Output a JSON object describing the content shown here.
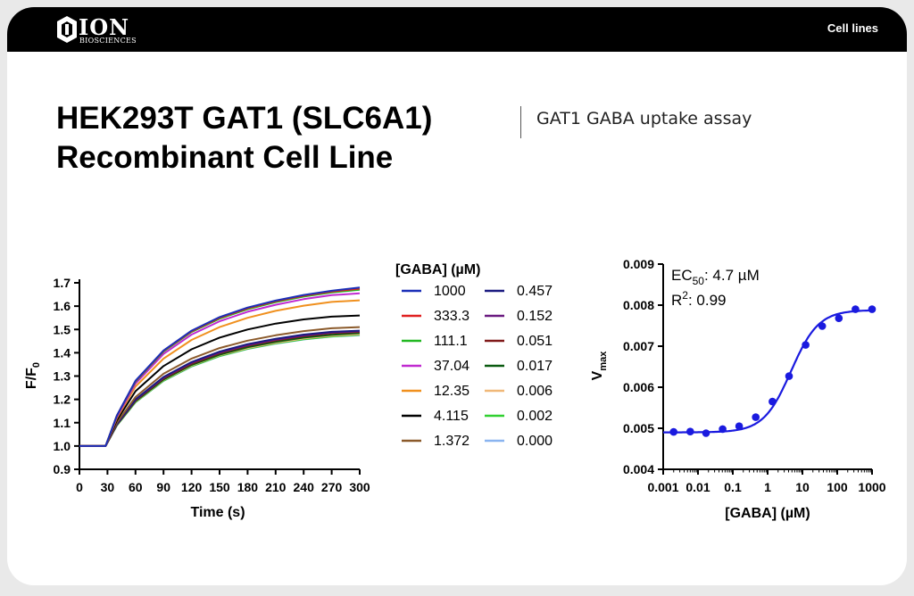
{
  "header": {
    "logo_text": "ION",
    "logo_subtext": "BIOSCIENCES",
    "section": "Cell lines"
  },
  "title": {
    "line1": "HEK293T GAT1 (SLC6A1)",
    "line2": "Recombinant Cell Line",
    "subtitle": "GAT1 GABA uptake assay"
  },
  "chart_data": [
    {
      "type": "line",
      "xlabel": "Time (s)",
      "ylabel": "F/F0",
      "ylabel_main": "F/F",
      "ylabel_sub": "0",
      "xlim": [
        0,
        300
      ],
      "ylim": [
        0.9,
        1.7
      ],
      "x_ticks": [
        "0",
        "30",
        "60",
        "90",
        "120",
        "150",
        "180",
        "210",
        "240",
        "270",
        "300"
      ],
      "y_ticks": [
        "0.9",
        "1.0",
        "1.1",
        "1.2",
        "1.3",
        "1.4",
        "1.5",
        "1.6",
        "1.7"
      ],
      "grid": false,
      "legend_title": "[GABA] (µM)",
      "legend_placement": "right",
      "x": [
        0,
        28,
        40,
        60,
        90,
        120,
        150,
        180,
        210,
        240,
        270,
        300
      ],
      "series": [
        {
          "name": "1000",
          "color": "#1a2fb8",
          "values": [
            1.0,
            1.0,
            1.13,
            1.28,
            1.41,
            1.495,
            1.553,
            1.594,
            1.624,
            1.648,
            1.666,
            1.68
          ]
        },
        {
          "name": "333.3",
          "color": "#e02020",
          "values": [
            1.0,
            1.0,
            1.13,
            1.278,
            1.408,
            1.492,
            1.55,
            1.591,
            1.621,
            1.645,
            1.663,
            1.675
          ]
        },
        {
          "name": "111.1",
          "color": "#22b822",
          "values": [
            1.0,
            1.0,
            1.13,
            1.276,
            1.405,
            1.489,
            1.546,
            1.587,
            1.617,
            1.641,
            1.659,
            1.67
          ]
        },
        {
          "name": "37.04",
          "color": "#c02ad0",
          "values": [
            1.0,
            1.0,
            1.125,
            1.268,
            1.395,
            1.478,
            1.535,
            1.576,
            1.606,
            1.63,
            1.647,
            1.655
          ]
        },
        {
          "name": "12.35",
          "color": "#f0901e",
          "values": [
            1.0,
            1.0,
            1.12,
            1.255,
            1.375,
            1.455,
            1.51,
            1.55,
            1.58,
            1.602,
            1.618,
            1.625
          ]
        },
        {
          "name": "4.115",
          "color": "#000000",
          "values": [
            1.0,
            1.0,
            1.11,
            1.235,
            1.343,
            1.415,
            1.465,
            1.5,
            1.525,
            1.543,
            1.555,
            1.56
          ]
        },
        {
          "name": "1.372",
          "color": "#8b5a2b",
          "values": [
            1.0,
            1.0,
            1.1,
            1.21,
            1.31,
            1.375,
            1.42,
            1.452,
            1.475,
            1.493,
            1.505,
            1.51
          ]
        },
        {
          "name": "0.457",
          "color": "#1a1a80",
          "values": [
            1.0,
            1.0,
            1.095,
            1.2,
            1.296,
            1.36,
            1.405,
            1.437,
            1.46,
            1.478,
            1.49,
            1.495
          ]
        },
        {
          "name": "0.152",
          "color": "#6a1a80",
          "values": [
            1.0,
            1.0,
            1.093,
            1.198,
            1.293,
            1.357,
            1.401,
            1.433,
            1.456,
            1.474,
            1.487,
            1.492
          ]
        },
        {
          "name": "0.051",
          "color": "#801a1a",
          "values": [
            1.0,
            1.0,
            1.092,
            1.196,
            1.29,
            1.353,
            1.398,
            1.43,
            1.453,
            1.471,
            1.484,
            1.49
          ]
        },
        {
          "name": "0.017",
          "color": "#0a5a10",
          "values": [
            1.0,
            1.0,
            1.09,
            1.192,
            1.285,
            1.348,
            1.392,
            1.424,
            1.447,
            1.465,
            1.477,
            1.485
          ]
        },
        {
          "name": "0.006",
          "color": "#f0b878",
          "values": [
            1.0,
            1.0,
            1.09,
            1.19,
            1.283,
            1.345,
            1.389,
            1.42,
            1.443,
            1.461,
            1.473,
            1.48
          ]
        },
        {
          "name": "0.002",
          "color": "#30d030",
          "values": [
            1.0,
            1.0,
            1.088,
            1.188,
            1.28,
            1.342,
            1.386,
            1.417,
            1.44,
            1.458,
            1.47,
            1.477
          ]
        },
        {
          "name": "0.000",
          "color": "#8ab4f0",
          "values": [
            1.0,
            1.0,
            1.088,
            1.187,
            1.279,
            1.341,
            1.385,
            1.416,
            1.439,
            1.457,
            1.469,
            1.475
          ]
        }
      ]
    },
    {
      "type": "scatter",
      "xlabel": "[GABA] (µM)",
      "ylabel": "Vmax",
      "ylabel_main": "V",
      "ylabel_sub": "max",
      "x_scale": "log",
      "xlim": [
        0.001,
        1000
      ],
      "ylim": [
        0.004,
        0.009
      ],
      "x_ticks": [
        "0.001",
        "0.01",
        "0.1",
        "1",
        "10",
        "100",
        "1000"
      ],
      "y_ticks": [
        "0.004",
        "0.005",
        "0.006",
        "0.007",
        "0.008",
        "0.009"
      ],
      "grid": false,
      "color": "#1a1adf",
      "annotation_ec50_label": "EC",
      "annotation_ec50_sub": "50",
      "annotation_ec50_value": ": 4.7 µM",
      "annotation_r2_label": "R",
      "annotation_r2_sup": "2",
      "annotation_r2_value": ": 0.99",
      "fit": {
        "bottom": 0.0049,
        "top": 0.00788,
        "ec50": 4.7,
        "hill": 1.1
      },
      "points": [
        {
          "x": 0.002,
          "y": 0.00491
        },
        {
          "x": 0.006,
          "y": 0.00492
        },
        {
          "x": 0.017,
          "y": 0.00488
        },
        {
          "x": 0.051,
          "y": 0.00498
        },
        {
          "x": 0.152,
          "y": 0.00505
        },
        {
          "x": 0.457,
          "y": 0.00527
        },
        {
          "x": 1.372,
          "y": 0.00565
        },
        {
          "x": 4.115,
          "y": 0.00627
        },
        {
          "x": 12.35,
          "y": 0.00703
        },
        {
          "x": 37.04,
          "y": 0.00749
        },
        {
          "x": 111.1,
          "y": 0.00768
        },
        {
          "x": 333.3,
          "y": 0.0079
        },
        {
          "x": 1000,
          "y": 0.0079
        }
      ]
    }
  ]
}
